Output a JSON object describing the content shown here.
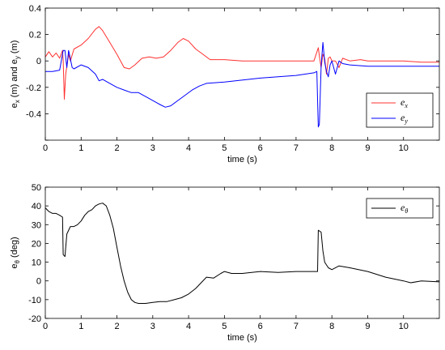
{
  "chart_data": [
    {
      "type": "line",
      "xlabel": "time (s)",
      "ylabel_parts": [
        "e",
        "x",
        " (m) and e",
        "y",
        " (m)"
      ],
      "xlim": [
        0,
        11
      ],
      "ylim": [
        -0.6,
        0.4
      ],
      "xticks": [
        0,
        1,
        2,
        3,
        4,
        5,
        6,
        7,
        8,
        9,
        10
      ],
      "yticks": [
        -0.6,
        -0.4,
        -0.2,
        0,
        0.2,
        0.4
      ],
      "ytick_labels": [
        "",
        "-0.4",
        "-0.2",
        "0",
        "0.2",
        "0.4"
      ],
      "legend_position": "lower-right",
      "series": [
        {
          "name_base": "e",
          "name_sub": "x",
          "color": "#ff3030",
          "x": [
            0,
            0.1,
            0.2,
            0.3,
            0.4,
            0.48,
            0.5,
            0.53,
            0.57,
            0.65,
            0.7,
            0.8,
            1.0,
            1.2,
            1.4,
            1.5,
            1.6,
            1.8,
            2.0,
            2.2,
            2.35,
            2.5,
            2.7,
            2.9,
            3.1,
            3.3,
            3.5,
            3.7,
            3.85,
            4.0,
            4.2,
            4.4,
            4.6,
            5.0,
            5.5,
            6.0,
            6.5,
            7.0,
            7.5,
            7.62,
            7.66,
            7.7,
            7.75,
            7.8,
            7.85,
            7.9,
            7.95,
            8.0,
            8.1,
            8.2,
            8.3,
            8.5,
            8.8,
            9.0,
            10.0,
            10.5,
            11.0
          ],
          "y": [
            0.03,
            0.07,
            0.03,
            0.06,
            0.02,
            0.08,
            0.0,
            -0.29,
            -0.1,
            0.05,
            0.0,
            0.09,
            0.12,
            0.17,
            0.24,
            0.26,
            0.23,
            0.14,
            0.05,
            -0.05,
            -0.06,
            -0.03,
            0.02,
            0.03,
            0.02,
            0.03,
            0.08,
            0.14,
            0.17,
            0.15,
            0.09,
            0.05,
            0.01,
            0.01,
            0.0,
            0.0,
            0.0,
            0.0,
            0.0,
            0.1,
            0.02,
            -0.05,
            0.05,
            0.02,
            -0.1,
            0.02,
            0.03,
            0.0,
            0.0,
            -0.05,
            0.02,
            0.0,
            0.01,
            0.0,
            0.0,
            -0.01,
            -0.01
          ]
        },
        {
          "name_base": "e",
          "name_sub": "y",
          "color": "#0000ff",
          "x": [
            0,
            0.2,
            0.4,
            0.5,
            0.55,
            0.6,
            0.65,
            0.75,
            0.8,
            1.0,
            1.2,
            1.4,
            1.5,
            1.6,
            1.8,
            2.0,
            2.2,
            2.4,
            2.6,
            2.8,
            3.0,
            3.2,
            3.35,
            3.5,
            3.7,
            3.9,
            4.1,
            4.3,
            4.5,
            5.0,
            6.0,
            7.0,
            7.5,
            7.58,
            7.62,
            7.65,
            7.7,
            7.75,
            7.8,
            7.85,
            7.9,
            7.95,
            8.0,
            8.1,
            8.2,
            8.3,
            8.5,
            9.0,
            10.0,
            11.0
          ],
          "y": [
            -0.08,
            -0.08,
            -0.07,
            0.08,
            0.08,
            -0.05,
            0.08,
            -0.05,
            -0.06,
            -0.03,
            -0.05,
            -0.1,
            -0.15,
            -0.14,
            -0.17,
            -0.2,
            -0.22,
            -0.24,
            -0.24,
            -0.27,
            -0.3,
            -0.33,
            -0.35,
            -0.34,
            -0.3,
            -0.26,
            -0.22,
            -0.19,
            -0.17,
            -0.16,
            -0.13,
            -0.11,
            -0.09,
            -0.08,
            -0.5,
            -0.48,
            -0.04,
            0.14,
            -0.01,
            -0.08,
            -0.12,
            -0.03,
            0.0,
            -0.1,
            0.0,
            -0.02,
            -0.03,
            -0.04,
            -0.04,
            -0.04
          ]
        }
      ]
    },
    {
      "type": "line",
      "xlabel": "time (s)",
      "ylabel_parts": [
        "e",
        "θ",
        " (deg)"
      ],
      "xlim": [
        0,
        11
      ],
      "ylim": [
        -20,
        50
      ],
      "xticks": [
        0,
        1,
        2,
        3,
        4,
        5,
        6,
        7,
        8,
        9,
        10
      ],
      "yticks": [
        -20,
        -10,
        0,
        10,
        20,
        30,
        40,
        50
      ],
      "ytick_labels": [
        "-20",
        "-10",
        "0",
        "10",
        "20",
        "30",
        "40",
        "50"
      ],
      "legend_position": "top-right",
      "series": [
        {
          "name_base": "e",
          "name_sub": "θ",
          "color": "#000000",
          "x": [
            0,
            0.1,
            0.2,
            0.3,
            0.4,
            0.48,
            0.5,
            0.55,
            0.6,
            0.7,
            0.8,
            0.9,
            1.0,
            1.1,
            1.2,
            1.3,
            1.4,
            1.5,
            1.6,
            1.7,
            1.8,
            1.9,
            2.0,
            2.1,
            2.2,
            2.3,
            2.4,
            2.5,
            2.6,
            2.7,
            2.8,
            3.0,
            3.2,
            3.4,
            3.6,
            3.8,
            4.0,
            4.2,
            4.35,
            4.5,
            4.7,
            4.9,
            5.0,
            5.2,
            5.5,
            6.0,
            6.5,
            7.0,
            7.5,
            7.6,
            7.62,
            7.7,
            7.75,
            7.8,
            7.9,
            8.0,
            8.2,
            8.5,
            9.0,
            9.5,
            10.0,
            10.2,
            10.5,
            11.0
          ],
          "y": [
            39,
            37,
            36,
            36,
            35,
            34,
            14,
            13,
            25,
            29,
            29,
            30,
            32,
            35,
            37,
            38,
            40,
            41,
            41.5,
            40,
            35,
            28,
            18,
            8,
            0,
            -6,
            -10,
            -11.5,
            -12,
            -12,
            -12,
            -11.5,
            -11,
            -11,
            -10,
            -9,
            -7,
            -4,
            -1,
            2,
            1.5,
            4,
            5,
            4,
            4,
            5,
            4.5,
            5,
            5,
            5,
            27,
            26,
            16,
            10,
            7,
            6,
            8,
            7,
            5,
            2,
            0,
            -1,
            0,
            -0.5
          ]
        }
      ]
    }
  ]
}
